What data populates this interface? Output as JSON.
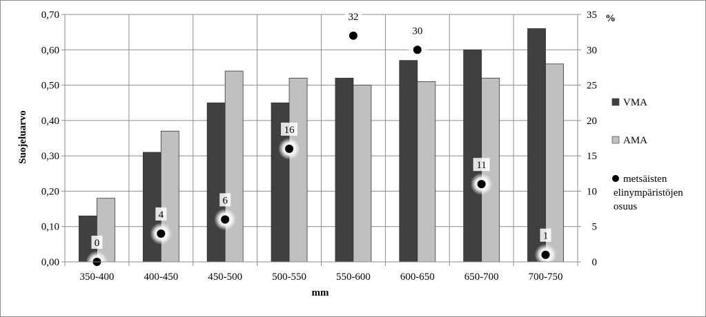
{
  "chart_data": {
    "type": "bar",
    "xlabel": "mm",
    "ylabel": "Suojeluarvo",
    "y2label": "%",
    "ylim": [
      0,
      0.7
    ],
    "y2lim": [
      0,
      35
    ],
    "y_ticks": [
      "0,00",
      "0,10",
      "0,20",
      "0,30",
      "0,40",
      "0,50",
      "0,60",
      "0,70"
    ],
    "y2_ticks": [
      "0",
      "5",
      "10",
      "15",
      "20",
      "25",
      "30",
      "35"
    ],
    "grid": true,
    "legend_position": "right",
    "categories": [
      "350-400",
      "400-450",
      "450-500",
      "500-550",
      "550-600",
      "600-650",
      "650-700",
      "700-750"
    ],
    "series": [
      {
        "name": "VMA",
        "axis": "left",
        "kind": "bar",
        "color": "#404040",
        "values": [
          0.13,
          0.31,
          0.45,
          0.45,
          0.52,
          0.57,
          0.6,
          0.66
        ]
      },
      {
        "name": "AMA",
        "axis": "left",
        "kind": "bar",
        "color": "#c0c0c0",
        "values": [
          0.18,
          0.37,
          0.54,
          0.52,
          0.5,
          0.51,
          0.52,
          0.56
        ]
      },
      {
        "name": "metsäisten elinympäristöjen osuus",
        "axis": "right",
        "kind": "scatter",
        "color": "#000000",
        "values": [
          0,
          4,
          6,
          16,
          32,
          30,
          11,
          1
        ],
        "labels": [
          "0",
          "4",
          "6",
          "16",
          "32",
          "30",
          "11",
          "1"
        ]
      }
    ]
  }
}
